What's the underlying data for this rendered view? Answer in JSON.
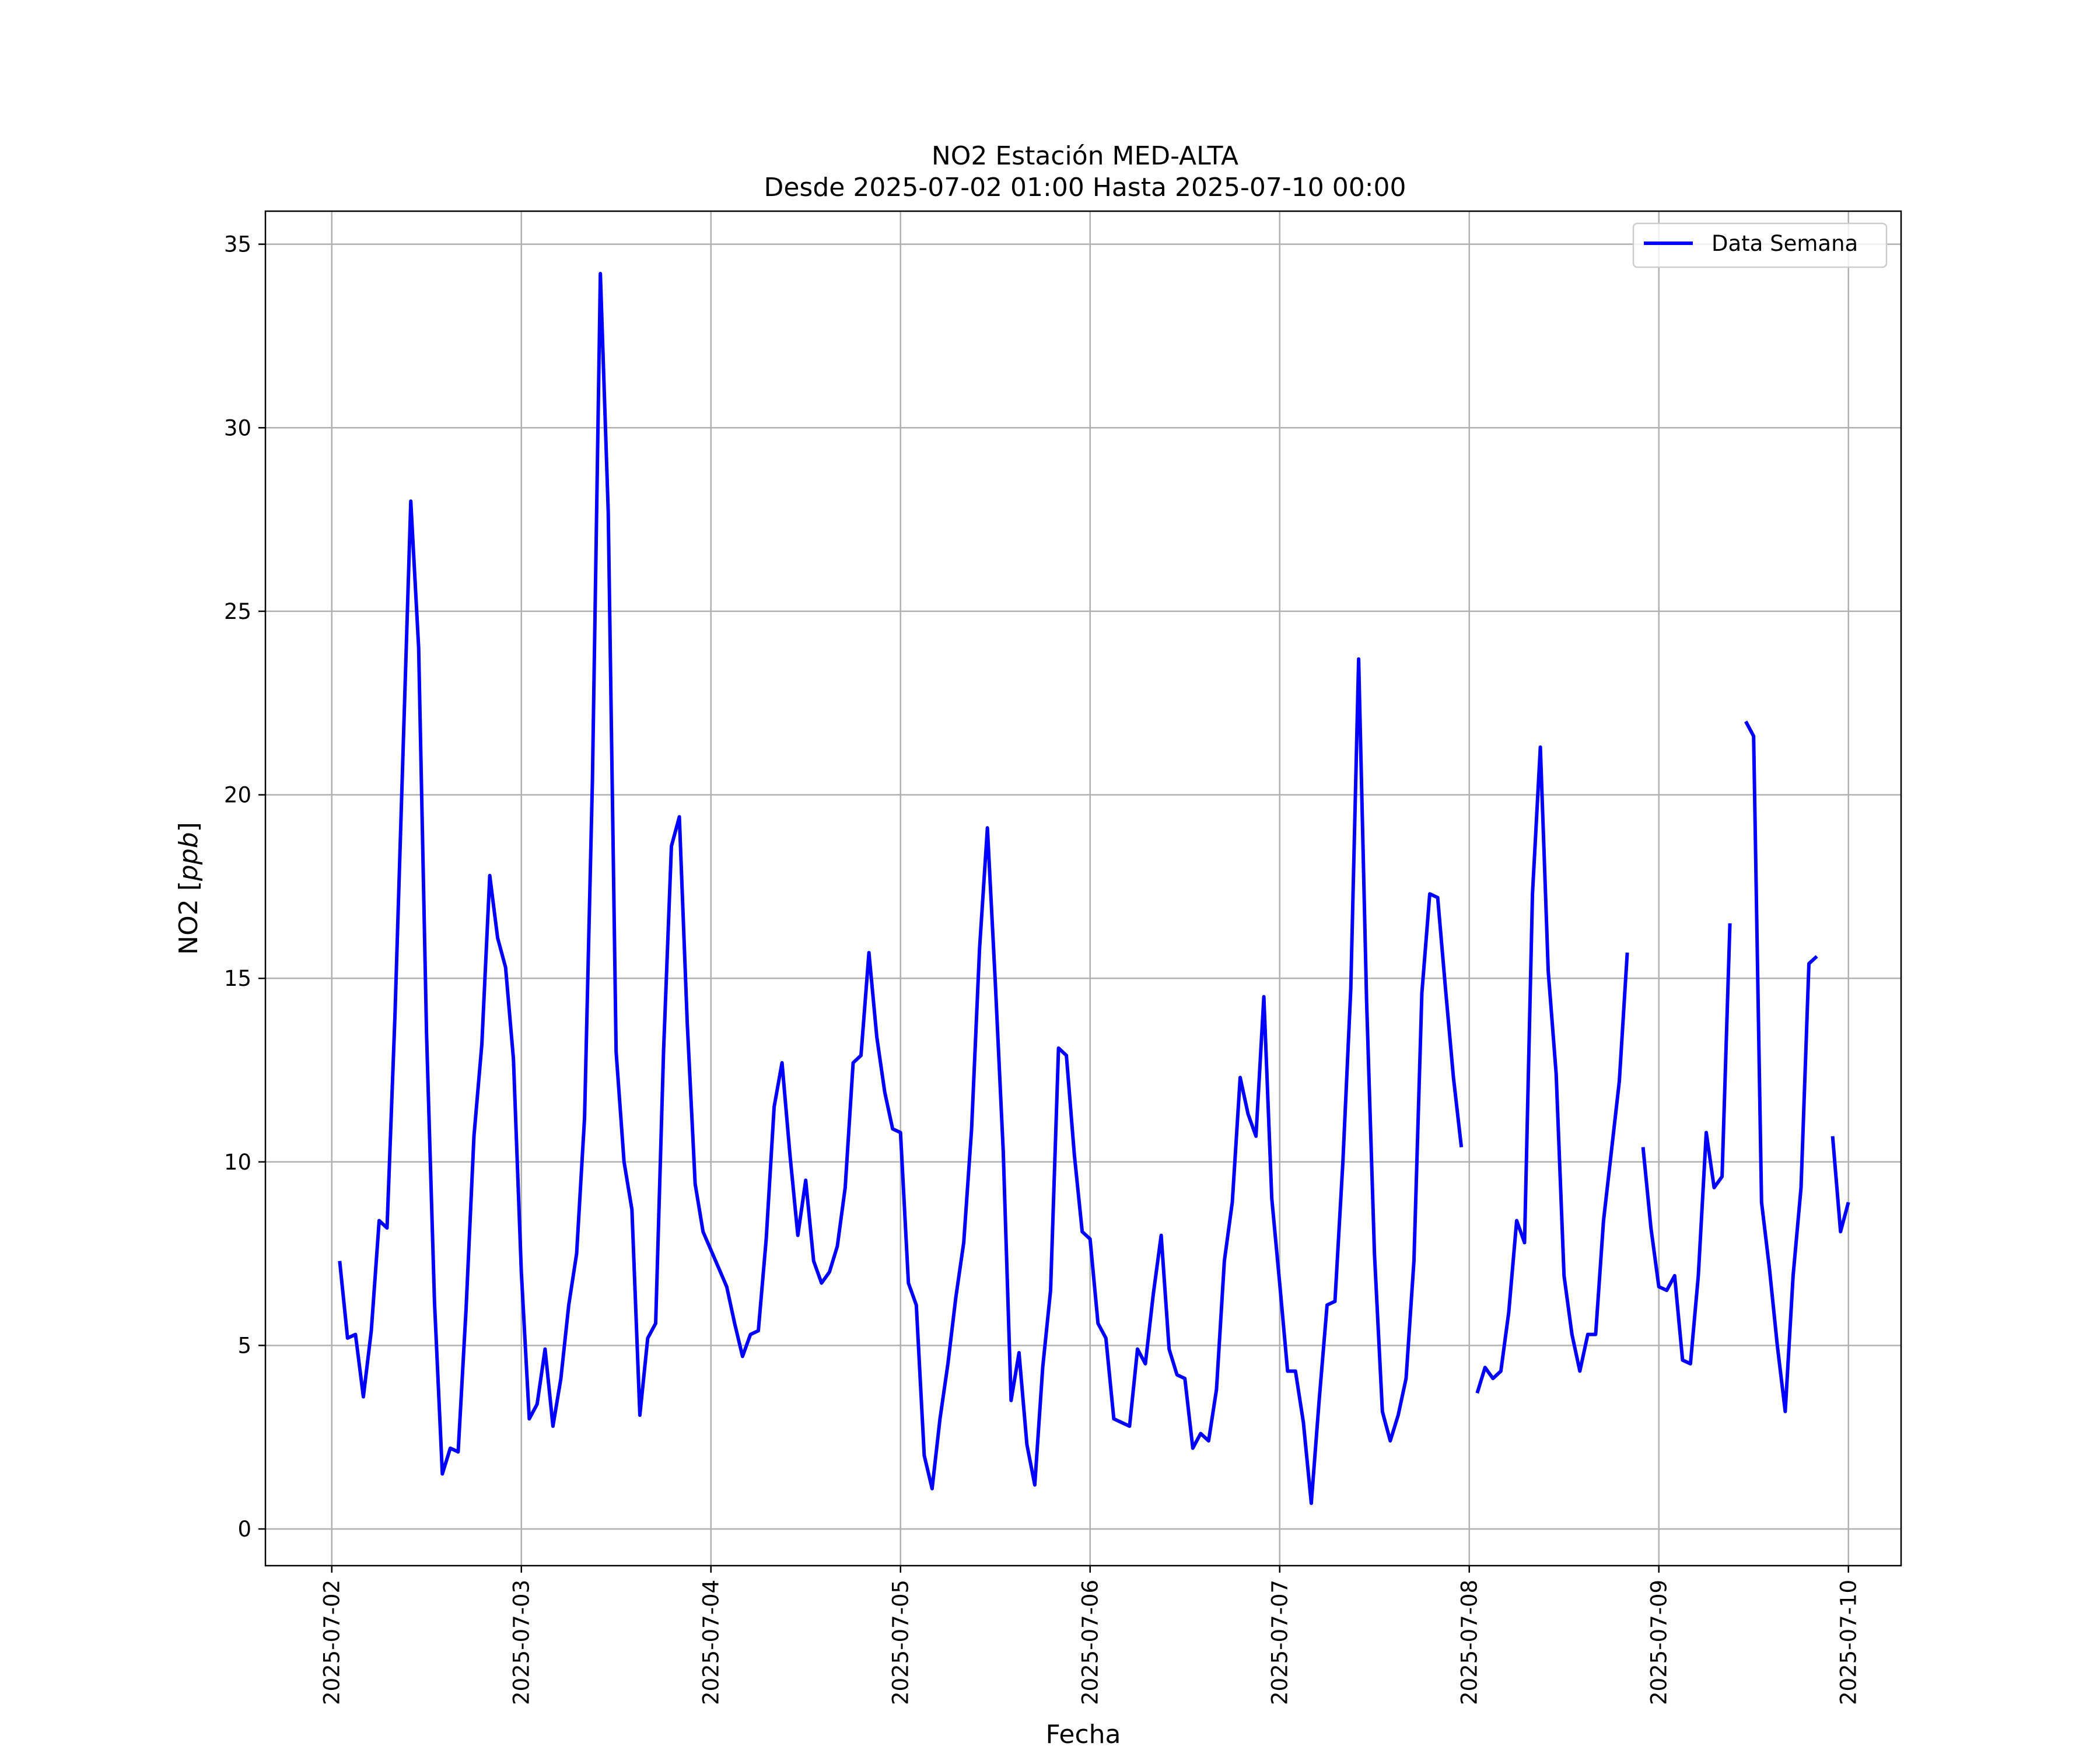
{
  "chart_data": {
    "type": "line",
    "title": "NO2 Estación MED-ALTA",
    "subtitle": "Desde 2025-07-02 01:00 Hasta 2025-07-10 00:00",
    "xlabel": "Fecha",
    "ylabel_prefix": "NO2 [",
    "ylabel_unit": "ppb",
    "ylabel_suffix": "]",
    "x_ticks": [
      "2025-07-02",
      "2025-07-03",
      "2025-07-04",
      "2025-07-05",
      "2025-07-06",
      "2025-07-07",
      "2025-07-08",
      "2025-07-09",
      "2025-07-10"
    ],
    "y_ticks": [
      0,
      5,
      10,
      15,
      20,
      25,
      30,
      35
    ],
    "xlim": [
      "2025-07-01 15:36",
      "2025-07-10 06:40"
    ],
    "ylim": [
      -1.0,
      35.9
    ],
    "grid": true,
    "legend_position": "top-right",
    "series": [
      {
        "name": "Data Semana",
        "color": "#0000ff",
        "x": [
          "2025-07-02 01:00",
          "2025-07-02 02:00",
          "2025-07-02 03:00",
          "2025-07-02 04:00",
          "2025-07-02 05:00",
          "2025-07-02 06:00",
          "2025-07-02 07:00",
          "2025-07-02 08:00",
          "2025-07-02 09:00",
          "2025-07-02 10:00",
          "2025-07-02 11:00",
          "2025-07-02 12:00",
          "2025-07-02 13:00",
          "2025-07-02 14:00",
          "2025-07-02 15:00",
          "2025-07-02 16:00",
          "2025-07-02 17:00",
          "2025-07-02 18:00",
          "2025-07-02 19:00",
          "2025-07-02 20:00",
          "2025-07-02 21:00",
          "2025-07-02 22:00",
          "2025-07-02 23:00",
          "2025-07-03 00:00",
          "2025-07-03 01:00",
          "2025-07-03 02:00",
          "2025-07-03 03:00",
          "2025-07-03 04:00",
          "2025-07-03 05:00",
          "2025-07-03 06:00",
          "2025-07-03 07:00",
          "2025-07-03 08:00",
          "2025-07-03 09:00",
          "2025-07-03 10:00",
          "2025-07-03 11:00",
          "2025-07-03 12:00",
          "2025-07-03 13:00",
          "2025-07-03 14:00",
          "2025-07-03 15:00",
          "2025-07-03 16:00",
          "2025-07-03 17:00",
          "2025-07-03 18:00",
          "2025-07-03 19:00",
          "2025-07-03 20:00",
          "2025-07-03 21:00",
          "2025-07-03 22:00",
          "2025-07-03 23:00",
          "2025-07-04 00:00",
          "2025-07-04 01:00",
          "2025-07-04 02:00",
          "2025-07-04 03:00",
          "2025-07-04 04:00",
          "2025-07-04 05:00",
          "2025-07-04 06:00",
          "2025-07-04 07:00",
          "2025-07-04 08:00",
          "2025-07-04 09:00",
          "2025-07-04 10:00",
          "2025-07-04 11:00",
          "2025-07-04 12:00",
          "2025-07-04 13:00",
          "2025-07-04 14:00",
          "2025-07-04 15:00",
          "2025-07-04 16:00",
          "2025-07-04 17:00",
          "2025-07-04 18:00",
          "2025-07-04 19:00",
          "2025-07-04 20:00",
          "2025-07-04 21:00",
          "2025-07-04 22:00",
          "2025-07-04 23:00",
          "2025-07-05 00:00",
          "2025-07-05 01:00",
          "2025-07-05 02:00",
          "2025-07-05 03:00",
          "2025-07-05 04:00",
          "2025-07-05 05:00",
          "2025-07-05 06:00",
          "2025-07-05 07:00",
          "2025-07-05 08:00",
          "2025-07-05 09:00",
          "2025-07-05 10:00",
          "2025-07-05 11:00",
          "2025-07-05 12:00",
          "2025-07-05 13:00",
          "2025-07-05 14:00",
          "2025-07-05 15:00",
          "2025-07-05 16:00",
          "2025-07-05 17:00",
          "2025-07-05 18:00",
          "2025-07-05 19:00",
          "2025-07-05 20:00",
          "2025-07-05 21:00",
          "2025-07-05 22:00",
          "2025-07-05 23:00",
          "2025-07-06 00:00",
          "2025-07-06 01:00",
          "2025-07-06 02:00",
          "2025-07-06 03:00",
          "2025-07-06 04:00",
          "2025-07-06 05:00",
          "2025-07-06 06:00",
          "2025-07-06 07:00",
          "2025-07-06 08:00",
          "2025-07-06 09:00",
          "2025-07-06 10:00",
          "2025-07-06 11:00",
          "2025-07-06 12:00",
          "2025-07-06 13:00",
          "2025-07-06 14:00",
          "2025-07-06 15:00",
          "2025-07-06 16:00",
          "2025-07-06 17:00",
          "2025-07-06 18:00",
          "2025-07-06 19:00",
          "2025-07-06 20:00",
          "2025-07-06 21:00",
          "2025-07-06 22:00",
          "2025-07-06 23:00",
          "2025-07-07 00:00",
          "2025-07-07 01:00",
          "2025-07-07 02:00",
          "2025-07-07 03:00",
          "2025-07-07 04:00",
          "2025-07-07 05:00",
          "2025-07-07 06:00",
          "2025-07-07 07:00",
          "2025-07-07 08:00",
          "2025-07-07 09:00",
          "2025-07-07 10:00",
          "2025-07-07 11:00",
          "2025-07-07 12:00",
          "2025-07-07 13:00",
          "2025-07-07 14:00",
          "2025-07-07 15:00",
          "2025-07-07 16:00",
          "2025-07-07 17:00",
          "2025-07-07 18:00",
          "2025-07-07 19:00",
          "2025-07-07 20:00",
          "2025-07-07 21:00",
          "2025-07-07 22:00",
          "2025-07-07 23:00",
          "2025-07-08 00:00",
          "2025-07-08 01:00",
          "2025-07-08 02:00",
          "2025-07-08 03:00",
          "2025-07-08 04:00",
          "2025-07-08 05:00",
          "2025-07-08 06:00",
          "2025-07-08 07:00",
          "2025-07-08 08:00",
          "2025-07-08 09:00",
          "2025-07-08 10:00",
          "2025-07-08 11:00",
          "2025-07-08 12:00",
          "2025-07-08 13:00",
          "2025-07-08 14:00",
          "2025-07-08 15:00",
          "2025-07-08 16:00",
          "2025-07-08 17:00",
          "2025-07-08 18:00",
          "2025-07-08 19:00",
          "2025-07-08 20:00",
          "2025-07-08 21:00",
          "2025-07-08 22:00",
          "2025-07-08 23:00",
          "2025-07-09 00:00",
          "2025-07-09 01:00",
          "2025-07-09 02:00",
          "2025-07-09 03:00",
          "2025-07-09 04:00",
          "2025-07-09 05:00",
          "2025-07-09 06:00",
          "2025-07-09 07:00",
          "2025-07-09 08:00",
          "2025-07-09 09:00",
          "2025-07-09 10:00",
          "2025-07-09 11:00",
          "2025-07-09 12:00",
          "2025-07-09 13:00",
          "2025-07-09 14:00",
          "2025-07-09 15:00",
          "2025-07-09 16:00",
          "2025-07-09 17:00",
          "2025-07-09 18:00",
          "2025-07-09 19:00",
          "2025-07-09 20:00",
          "2025-07-09 21:00",
          "2025-07-09 22:00",
          "2025-07-09 23:00",
          "2025-07-10 00:00"
        ],
        "y": [
          7.3,
          5.2,
          5.3,
          3.6,
          5.4,
          8.4,
          8.2,
          14.0,
          21.0,
          28.0,
          24.0,
          13.5,
          6.2,
          1.5,
          2.2,
          2.1,
          6.0,
          10.7,
          13.2,
          17.8,
          16.1,
          15.3,
          12.8,
          7.0,
          3.0,
          3.4,
          4.9,
          2.8,
          4.1,
          6.1,
          7.5,
          11.2,
          20.4,
          34.2,
          27.7,
          13.0,
          10.0,
          8.7,
          3.1,
          5.2,
          5.6,
          13.0,
          18.6,
          19.4,
          13.8,
          9.4,
          8.1,
          7.6,
          7.1,
          6.6,
          5.6,
          4.7,
          5.3,
          5.4,
          7.9,
          11.5,
          12.7,
          10.2,
          8.0,
          9.5,
          7.3,
          6.7,
          7.0,
          7.7,
          9.3,
          12.7,
          12.9,
          15.7,
          13.4,
          11.9,
          10.9,
          10.8,
          6.7,
          6.1,
          2.0,
          1.1,
          3.0,
          4.5,
          6.3,
          7.8,
          10.9,
          15.8,
          19.1,
          14.9,
          10.3,
          3.5,
          4.8,
          2.3,
          1.2,
          4.4,
          6.5,
          13.1,
          12.9,
          10.2,
          8.1,
          7.9,
          5.6,
          5.2,
          3.0,
          2.9,
          2.8,
          4.9,
          4.5,
          6.4,
          8.0,
          4.9,
          4.2,
          4.1,
          2.2,
          2.6,
          2.4,
          3.8,
          7.3,
          8.9,
          12.3,
          11.3,
          10.7,
          14.5,
          9.0,
          6.7,
          4.3,
          4.3,
          2.9,
          0.7,
          3.5,
          6.1,
          6.2,
          10.0,
          14.7,
          23.7,
          14.4,
          7.5,
          3.2,
          2.4,
          3.1,
          4.1,
          7.3,
          14.6,
          17.3,
          17.2,
          14.7,
          12.3,
          10.4,
          null,
          3.7,
          4.4,
          4.1,
          4.3,
          5.9,
          8.4,
          7.8,
          17.3,
          21.3,
          15.2,
          12.4,
          6.9,
          5.3,
          4.3,
          5.3,
          5.3,
          8.4,
          10.3,
          12.2,
          15.7,
          null,
          10.4,
          8.2,
          6.6,
          6.5,
          6.9,
          4.6,
          4.5,
          6.9,
          10.8,
          9.3,
          9.6,
          16.5,
          null,
          22.0,
          21.6,
          8.9,
          7.1,
          5.0,
          3.2,
          6.9,
          9.3,
          15.4,
          15.6,
          null,
          10.7,
          8.1,
          8.9
        ]
      }
    ]
  }
}
